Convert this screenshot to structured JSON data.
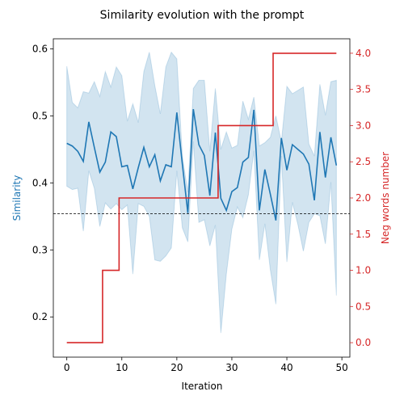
{
  "chart_data": {
    "type": "line",
    "title": "Similarity evolution with the prompt",
    "xlabel": "Iteration",
    "ylabel_left": "Similarity",
    "ylabel_right": "Neg words number",
    "xlim": [
      -2.45,
      51.45
    ],
    "ylim_left": [
      0.14,
      0.615
    ],
    "ylim_right": [
      -0.2,
      4.2
    ],
    "xticks": [
      0,
      10,
      20,
      30,
      40,
      50
    ],
    "yticks_left": [
      0.2,
      0.3,
      0.4,
      0.5,
      0.6
    ],
    "yticks_right": [
      0.0,
      0.5,
      1.0,
      1.5,
      2.0,
      2.5,
      3.0,
      3.5,
      4.0
    ],
    "reference_line": {
      "y": 0.354,
      "style": "dashed",
      "color": "#000000"
    },
    "x": [
      0,
      1,
      2,
      3,
      4,
      5,
      6,
      7,
      8,
      9,
      10,
      11,
      12,
      13,
      14,
      15,
      16,
      17,
      18,
      19,
      20,
      21,
      22,
      23,
      24,
      25,
      26,
      27,
      28,
      29,
      30,
      31,
      32,
      33,
      34,
      35,
      36,
      37,
      38,
      39,
      40,
      41,
      42,
      43,
      44,
      45,
      46,
      47,
      48,
      49
    ],
    "series": [
      {
        "axis": "left",
        "color": "#1f77b4",
        "values": [
          0.459,
          0.455,
          0.447,
          0.432,
          0.491,
          0.453,
          0.416,
          0.431,
          0.476,
          0.469,
          0.424,
          0.426,
          0.391,
          0.423,
          0.453,
          0.424,
          0.442,
          0.403,
          0.427,
          0.424,
          0.505,
          0.428,
          0.355,
          0.51,
          0.457,
          0.441,
          0.381,
          0.475,
          0.377,
          0.359,
          0.387,
          0.393,
          0.431,
          0.438,
          0.509,
          0.359,
          0.42,
          0.383,
          0.344,
          0.467,
          0.419,
          0.457,
          0.45,
          0.443,
          0.428,
          0.374,
          0.476,
          0.408,
          0.468,
          0.426
        ],
        "band_upper": [
          0.574,
          0.52,
          0.512,
          0.536,
          0.534,
          0.551,
          0.529,
          0.566,
          0.543,
          0.573,
          0.56,
          0.492,
          0.518,
          0.49,
          0.566,
          0.595,
          0.545,
          0.503,
          0.573,
          0.595,
          0.585,
          0.44,
          0.386,
          0.541,
          0.553,
          0.553,
          0.447,
          0.541,
          0.45,
          0.476,
          0.452,
          0.456,
          0.522,
          0.495,
          0.528,
          0.455,
          0.46,
          0.468,
          0.5,
          0.461,
          0.544,
          0.533,
          0.538,
          0.543,
          0.458,
          0.44,
          0.547,
          0.501,
          0.551,
          0.553
        ],
        "band_lower": [
          0.395,
          0.39,
          0.392,
          0.328,
          0.418,
          0.392,
          0.335,
          0.37,
          0.361,
          0.369,
          0.36,
          0.367,
          0.264,
          0.369,
          0.365,
          0.35,
          0.285,
          0.283,
          0.291,
          0.303,
          0.418,
          0.333,
          0.312,
          0.462,
          0.341,
          0.345,
          0.306,
          0.337,
          0.176,
          0.264,
          0.331,
          0.364,
          0.348,
          0.382,
          0.448,
          0.285,
          0.339,
          0.27,
          0.219,
          0.44,
          0.282,
          0.371,
          0.338,
          0.298,
          0.341,
          0.354,
          0.351,
          0.309,
          0.401,
          0.232
        ]
      },
      {
        "axis": "right",
        "color": "#d62728",
        "values": [
          0,
          0,
          0,
          0,
          0,
          0,
          0,
          1,
          1,
          1,
          2,
          2,
          2,
          2,
          2,
          2,
          2,
          2,
          2,
          2,
          2,
          2,
          2,
          2,
          2,
          2,
          2,
          2,
          3,
          3,
          3,
          3,
          3,
          3,
          3,
          3,
          3,
          3,
          4,
          4,
          4,
          4,
          4,
          4,
          4,
          4,
          4,
          4,
          4,
          4
        ]
      }
    ]
  }
}
